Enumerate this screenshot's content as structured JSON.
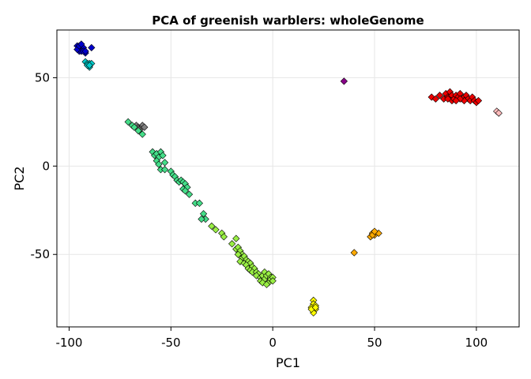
{
  "chart_data": {
    "type": "scatter",
    "title": "PCA of greenish warblers: wholeGenome",
    "xlabel": "PC1",
    "ylabel": "PC2",
    "xlim": [
      -106,
      121
    ],
    "ylim": [
      -91,
      77
    ],
    "xticks": [
      -100,
      -50,
      0,
      50,
      100
    ],
    "yticks": [
      50,
      0,
      -50
    ],
    "xtick_labels": [
      "-100",
      "-50",
      "0",
      "50",
      "100"
    ],
    "ytick_labels": [
      "50",
      "0",
      "-50"
    ],
    "grid": true,
    "marker": "diamond",
    "series": [
      {
        "color": "#0000cc",
        "points": [
          [
            -96,
            68
          ],
          [
            -95,
            67
          ],
          [
            -94,
            66
          ],
          [
            -95,
            65
          ],
          [
            -93,
            67
          ],
          [
            -92,
            64
          ],
          [
            -94,
            65
          ],
          [
            -96,
            66
          ],
          [
            -93,
            65
          ],
          [
            -95,
            68
          ],
          [
            -89,
            67
          ],
          [
            -92,
            65
          ],
          [
            -94,
            69
          ]
        ]
      },
      {
        "color": "#00cccc",
        "points": [
          [
            -92,
            59
          ],
          [
            -91,
            58
          ],
          [
            -90,
            58
          ],
          [
            -90,
            56
          ],
          [
            -91,
            57
          ],
          [
            -89,
            58
          ],
          [
            -90,
            57
          ]
        ]
      },
      {
        "color": "#808080",
        "points": [
          [
            -67,
            23
          ],
          [
            -66,
            22
          ],
          [
            -64,
            23
          ],
          [
            -65,
            21
          ],
          [
            -63,
            22
          ],
          [
            -66,
            21
          ]
        ]
      },
      {
        "color": "#44dd88",
        "points": [
          [
            -71,
            25
          ],
          [
            -69,
            23
          ],
          [
            -68,
            22
          ],
          [
            -66,
            20
          ],
          [
            -64,
            18
          ],
          [
            -59,
            8
          ],
          [
            -58,
            6
          ],
          [
            -57,
            7
          ],
          [
            -56,
            5
          ],
          [
            -55,
            8
          ],
          [
            -54,
            6
          ],
          [
            -53,
            2
          ],
          [
            -57,
            3
          ],
          [
            -56,
            1
          ],
          [
            -55,
            -2
          ],
          [
            -53,
            -2
          ],
          [
            -50,
            -3
          ],
          [
            -49,
            -5
          ],
          [
            -48,
            -6
          ],
          [
            -47,
            -8
          ],
          [
            -46,
            -9
          ],
          [
            -45,
            -8
          ],
          [
            -44,
            -9
          ],
          [
            -43,
            -10
          ],
          [
            -42,
            -12
          ],
          [
            -44,
            -13
          ],
          [
            -43,
            -14
          ],
          [
            -41,
            -16
          ],
          [
            -38,
            -21
          ],
          [
            -36,
            -21
          ],
          [
            -34,
            -27
          ],
          [
            -33,
            -30
          ],
          [
            -35,
            -30
          ]
        ]
      },
      {
        "color": "#99ee44",
        "points": [
          [
            -30,
            -34
          ],
          [
            -28,
            -36
          ],
          [
            -25,
            -38
          ],
          [
            -24,
            -40
          ],
          [
            -20,
            -44
          ],
          [
            -18,
            -41
          ],
          [
            -18,
            -47
          ],
          [
            -17,
            -46
          ],
          [
            -16,
            -48
          ],
          [
            -15,
            -50
          ],
          [
            -17,
            -50
          ],
          [
            -15,
            -52
          ],
          [
            -14,
            -51
          ],
          [
            -13,
            -53
          ],
          [
            -16,
            -54
          ],
          [
            -14,
            -55
          ],
          [
            -12,
            -54
          ],
          [
            -11,
            -55
          ],
          [
            -13,
            -56
          ],
          [
            -12,
            -58
          ],
          [
            -10,
            -57
          ],
          [
            -9,
            -58
          ],
          [
            -11,
            -59
          ],
          [
            -10,
            -60
          ],
          [
            -8,
            -60
          ],
          [
            -7,
            -61
          ],
          [
            -8,
            -62
          ],
          [
            -6,
            -63
          ],
          [
            -5,
            -62
          ],
          [
            -4,
            -60
          ],
          [
            -6,
            -65
          ],
          [
            -4,
            -64
          ],
          [
            -3,
            -62
          ],
          [
            -2,
            -61
          ],
          [
            -1,
            -63
          ],
          [
            -2,
            -66
          ],
          [
            -1,
            -64
          ],
          [
            0,
            -63
          ],
          [
            0,
            -65
          ],
          [
            -5,
            -66
          ],
          [
            -3,
            -67
          ]
        ]
      },
      {
        "color": "#ffff00",
        "points": [
          [
            20,
            -76
          ],
          [
            20,
            -78
          ],
          [
            21,
            -79
          ],
          [
            19,
            -80
          ],
          [
            21,
            -81
          ],
          [
            20,
            -83
          ],
          [
            19,
            -81
          ],
          [
            21,
            -80
          ]
        ]
      },
      {
        "color": "#ffaa00",
        "points": [
          [
            40,
            -49
          ],
          [
            48,
            -40
          ],
          [
            49,
            -38
          ],
          [
            50,
            -39
          ],
          [
            49,
            -39
          ],
          [
            52,
            -38
          ],
          [
            50,
            -37
          ]
        ]
      },
      {
        "color": "#880088",
        "points": [
          [
            35,
            48
          ]
        ]
      },
      {
        "color": "#ee0000",
        "points": [
          [
            78,
            39
          ],
          [
            80,
            38
          ],
          [
            82,
            40
          ],
          [
            84,
            38
          ],
          [
            85,
            41
          ],
          [
            86,
            39
          ],
          [
            87,
            42
          ],
          [
            88,
            40
          ],
          [
            88,
            37
          ],
          [
            89,
            38
          ],
          [
            90,
            40
          ],
          [
            91,
            39
          ],
          [
            92,
            41
          ],
          [
            93,
            38
          ],
          [
            94,
            39
          ],
          [
            95,
            40
          ],
          [
            96,
            38
          ],
          [
            97,
            37
          ],
          [
            98,
            39
          ],
          [
            99,
            37
          ],
          [
            100,
            36
          ],
          [
            101,
            37
          ],
          [
            94,
            37
          ],
          [
            92,
            38
          ],
          [
            90,
            37
          ],
          [
            86,
            38
          ]
        ]
      },
      {
        "color": "#ffbbbb",
        "points": [
          [
            110,
            31
          ],
          [
            111,
            30
          ]
        ]
      }
    ]
  }
}
